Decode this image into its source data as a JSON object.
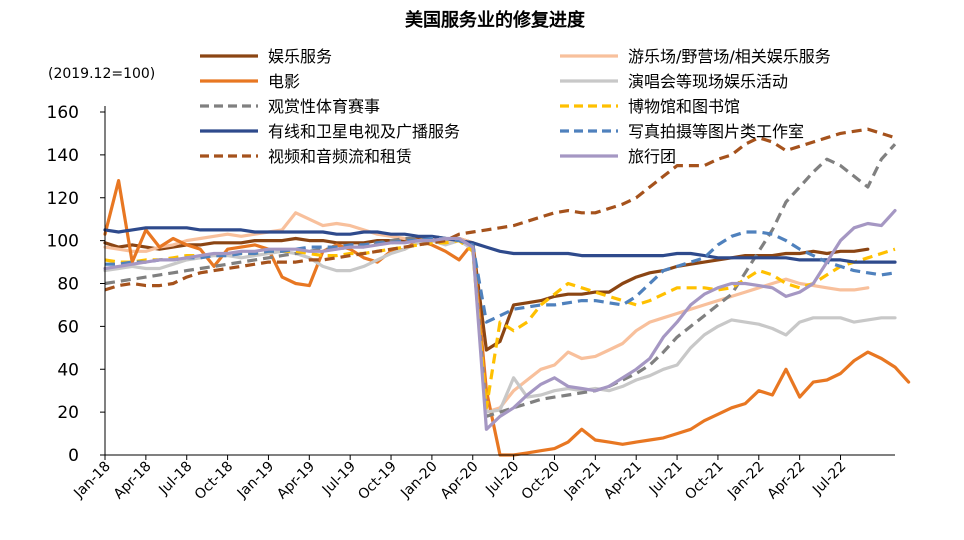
{
  "chart_data": {
    "type": "line",
    "title": "美国服务业的修复进度",
    "unit_note": "(2019.12=100)",
    "xlabel": "",
    "ylabel": "",
    "ylim": [
      0,
      160
    ],
    "yticks": [
      0,
      20,
      40,
      60,
      80,
      100,
      120,
      140,
      160
    ],
    "x_start": "Jan-18",
    "xtick_labels": [
      "Jan-18",
      "Apr-18",
      "Jul-18",
      "Oct-18",
      "Jan-19",
      "Apr-19",
      "Jul-19",
      "Oct-19",
      "Jan-20",
      "Apr-20",
      "Jul-20",
      "Oct-20",
      "Jan-21",
      "Apr-21",
      "Jul-21",
      "Oct-21",
      "Jan-22",
      "Apr-22",
      "Jul-22"
    ],
    "grid": false,
    "legend_placement": "top",
    "series": [
      {
        "name": "娱乐服务",
        "color": "#8B4513",
        "dash": "solid",
        "width": 3.2,
        "values": [
          99,
          97,
          98,
          97,
          96,
          97,
          98,
          98,
          99,
          99,
          99,
          100,
          100,
          100,
          101,
          100,
          100,
          99,
          99,
          99,
          100,
          100,
          100,
          101,
          100,
          100,
          101,
          99,
          49,
          53,
          70,
          71,
          72,
          74,
          75,
          75,
          76,
          76,
          80,
          83,
          85,
          86,
          88,
          89,
          90,
          91,
          92,
          93,
          93,
          93,
          94,
          94,
          95,
          94,
          95,
          95,
          96
        ]
      },
      {
        "name": "游乐场/野营场/相关娱乐服务",
        "color": "#F8C09C",
        "dash": "solid",
        "width": 3.2,
        "values": [
          97,
          96,
          95,
          95,
          97,
          98,
          100,
          101,
          102,
          103,
          102,
          103,
          104,
          105,
          113,
          110,
          107,
          108,
          107,
          105,
          103,
          102,
          101,
          100,
          101,
          100,
          101,
          99,
          20,
          22,
          30,
          35,
          40,
          42,
          48,
          45,
          46,
          49,
          52,
          58,
          62,
          64,
          66,
          68,
          70,
          72,
          74,
          76,
          78,
          80,
          82,
          80,
          79,
          78,
          77,
          77,
          78
        ]
      },
      {
        "name": "电影",
        "color": "#E87722",
        "dash": "solid",
        "width": 3.2,
        "values": [
          103,
          128,
          90,
          105,
          97,
          101,
          98,
          96,
          88,
          96,
          97,
          98,
          96,
          83,
          80,
          79,
          95,
          98,
          96,
          92,
          90,
          95,
          96,
          100,
          98,
          95,
          91,
          99,
          30,
          0,
          0,
          1,
          2,
          3,
          6,
          12,
          7,
          6,
          5,
          6,
          7,
          8,
          10,
          12,
          16,
          19,
          22,
          24,
          30,
          28,
          40,
          27,
          34,
          35,
          38,
          44,
          48,
          45,
          41,
          34
        ]
      },
      {
        "name": "演唱会等现场娱乐活动",
        "color": "#C8C8C8",
        "dash": "solid",
        "width": 3.2,
        "values": [
          86,
          87,
          88,
          87,
          87,
          89,
          91,
          92,
          93,
          93,
          92,
          93,
          94,
          95,
          94,
          92,
          88,
          86,
          86,
          88,
          91,
          94,
          96,
          99,
          100,
          98,
          100,
          96,
          20,
          21,
          36,
          27,
          28,
          30,
          31,
          30,
          31,
          30,
          32,
          35,
          37,
          40,
          42,
          50,
          56,
          60,
          63,
          62,
          61,
          59,
          56,
          62,
          64,
          64,
          64,
          62,
          63,
          64,
          64
        ]
      },
      {
        "name": "观赏性体育赛事",
        "color": "#808080",
        "dash": "dashed",
        "width": 3.2,
        "values": [
          80,
          81,
          82,
          83,
          84,
          85,
          86,
          87,
          88,
          89,
          90,
          91,
          92,
          93,
          94,
          95,
          96,
          96,
          97,
          98,
          99,
          100,
          101,
          101,
          102,
          101,
          100,
          99,
          18,
          20,
          22,
          24,
          26,
          27,
          28,
          29,
          30,
          32,
          35,
          38,
          42,
          48,
          55,
          60,
          65,
          70,
          75,
          85,
          95,
          105,
          118,
          125,
          132,
          138,
          135,
          130,
          125,
          138,
          145
        ]
      },
      {
        "name": "博物馆和图书馆",
        "color": "#FFC000",
        "dash": "dashed",
        "width": 3.2,
        "values": [
          91,
          90,
          90,
          91,
          91,
          92,
          93,
          93,
          93,
          94,
          94,
          94,
          95,
          95,
          95,
          94,
          93,
          93,
          94,
          94,
          95,
          96,
          97,
          98,
          99,
          99,
          100,
          95,
          22,
          62,
          58,
          62,
          70,
          75,
          80,
          78,
          76,
          74,
          72,
          70,
          72,
          75,
          78,
          78,
          78,
          77,
          78,
          82,
          86,
          84,
          80,
          78,
          80,
          84,
          88,
          90,
          92,
          94,
          96
        ]
      },
      {
        "name": "有线和卫星电视及广播服务",
        "color": "#2E4A8C",
        "dash": "solid",
        "width": 3.2,
        "values": [
          105,
          104,
          105,
          106,
          106,
          106,
          106,
          105,
          105,
          105,
          105,
          104,
          104,
          104,
          104,
          104,
          104,
          103,
          103,
          104,
          104,
          103,
          103,
          102,
          102,
          101,
          100,
          99,
          97,
          95,
          94,
          94,
          94,
          94,
          94,
          93,
          93,
          93,
          93,
          93,
          93,
          93,
          94,
          94,
          93,
          92,
          92,
          92,
          92,
          92,
          92,
          91,
          91,
          91,
          91,
          90,
          90,
          90,
          90
        ]
      },
      {
        "name": "写真拍摄等图片类工作室",
        "color": "#4F81BD",
        "dash": "dashed",
        "width": 3.2,
        "values": [
          89,
          89,
          90,
          90,
          91,
          91,
          92,
          92,
          93,
          93,
          94,
          94,
          95,
          95,
          96,
          97,
          97,
          97,
          98,
          98,
          99,
          99,
          100,
          100,
          101,
          101,
          100,
          98,
          62,
          65,
          68,
          69,
          70,
          70,
          71,
          72,
          72,
          71,
          70,
          74,
          80,
          86,
          88,
          90,
          92,
          98,
          102,
          104,
          104,
          103,
          100,
          96,
          93,
          90,
          88,
          86,
          85,
          84,
          85
        ]
      },
      {
        "name": "视频和音频流和租赁",
        "color": "#A5521C",
        "dash": "dashed",
        "width": 3.2,
        "values": [
          77,
          79,
          80,
          79,
          79,
          80,
          83,
          85,
          86,
          87,
          88,
          89,
          90,
          90,
          90,
          91,
          91,
          92,
          93,
          94,
          95,
          96,
          97,
          98,
          99,
          100,
          103,
          104,
          105,
          106,
          107,
          109,
          111,
          113,
          114,
          113,
          113,
          115,
          117,
          120,
          125,
          130,
          135,
          135,
          135,
          138,
          140,
          145,
          148,
          146,
          142,
          144,
          146,
          148,
          150,
          151,
          152,
          150,
          148
        ]
      },
      {
        "name": "旅行团",
        "color": "#A597C3",
        "dash": "solid",
        "width": 3.2,
        "values": [
          87,
          88,
          89,
          90,
          91,
          91,
          92,
          93,
          94,
          94,
          95,
          95,
          96,
          96,
          96,
          95,
          95,
          96,
          97,
          97,
          98,
          99,
          99,
          100,
          100,
          101,
          101,
          97,
          12,
          18,
          22,
          28,
          33,
          36,
          32,
          31,
          30,
          32,
          36,
          40,
          45,
          55,
          62,
          70,
          75,
          78,
          80,
          80,
          79,
          78,
          74,
          76,
          80,
          90,
          100,
          106,
          108,
          107,
          114
        ]
      }
    ]
  }
}
